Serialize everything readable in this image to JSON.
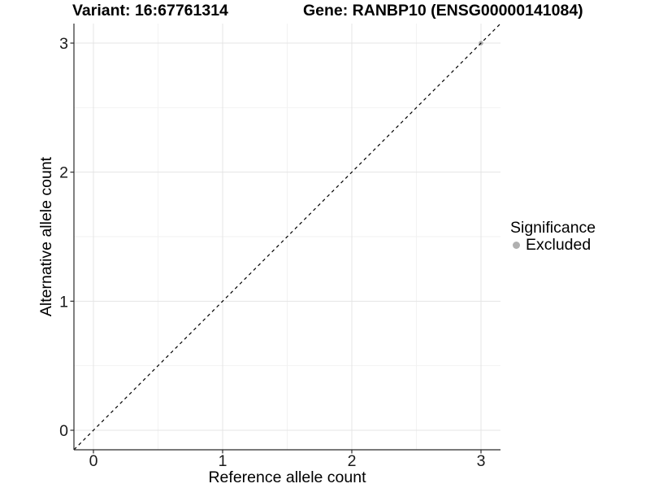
{
  "chart_data": {
    "type": "scatter",
    "title_left": "Variant: 16:67761314",
    "title_right": "Gene: RANBP10 (ENSG00000141084)",
    "xlabel": "Reference allele count",
    "ylabel": "Alternative allele count",
    "xlim": [
      -0.15,
      3.15
    ],
    "ylim": [
      -0.15,
      3.15
    ],
    "x_ticks": [
      0,
      1,
      2,
      3
    ],
    "y_ticks": [
      0,
      1,
      2,
      3
    ],
    "x_minor_ticks": [
      0.5,
      1.5,
      2.5
    ],
    "y_minor_ticks": [
      0.5,
      1.5,
      2.5
    ],
    "grid": {
      "major": true,
      "minor": true,
      "major_color": "#e4e4e4",
      "minor_color": "#f2f2f2"
    },
    "identity_line": {
      "style": "dashed",
      "color": "#000000",
      "from": [
        -0.15,
        -0.15
      ],
      "to": [
        3.15,
        3.15
      ]
    },
    "series": [
      {
        "name": "Excluded",
        "color": "#b0b0b0",
        "points": [
          {
            "x": 3,
            "y": 3
          }
        ]
      }
    ],
    "legend": {
      "title": "Significance",
      "position": "right",
      "entries": [
        {
          "label": "Excluded",
          "color": "#b0b0b0"
        }
      ]
    },
    "axis_color": "#2b2b2b",
    "tick_label_color": "#1a1a1a"
  }
}
